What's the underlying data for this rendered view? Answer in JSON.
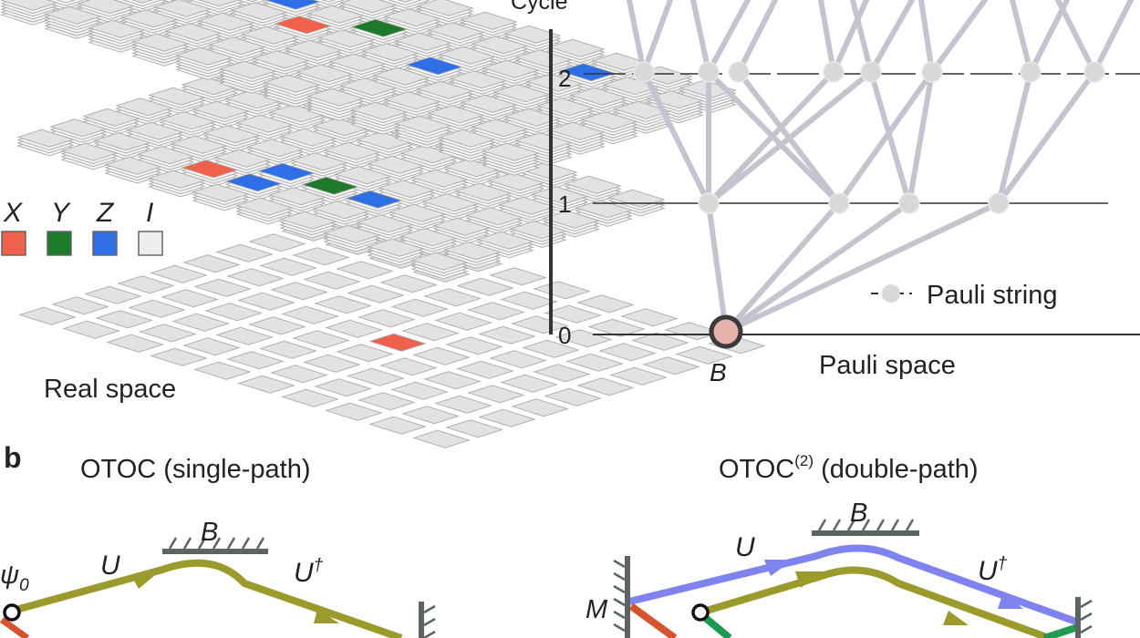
{
  "panel_a": {
    "cycle_axis_title": "Cycle",
    "cycle_ticks": [
      "0",
      "1",
      "2"
    ],
    "x_axis_label": "Pauli space",
    "origin_label": "B",
    "legend_label": "Pauli string",
    "real_space_label": "Real space",
    "pauli_legend": [
      {
        "label": "X",
        "color": "#f0614b"
      },
      {
        "label": "Y",
        "color": "#1d7a2a"
      },
      {
        "label": "Z",
        "color": "#2f6fe6"
      },
      {
        "label": "I",
        "color": "#eeeeee"
      }
    ],
    "colors": {
      "tile": "#e2e2e2",
      "tile_edge": "#a8a8a8",
      "node": "#d8d8d8",
      "edge": "#c4c4cf",
      "origin_fill": "#e5b1aa",
      "origin_ring": "#3a3a3a"
    }
  },
  "panel_b": {
    "letter": "b",
    "left_title": "OTOC (single-path)",
    "right_title_main": "OTOC",
    "right_title_sup": "(2)",
    "right_title_rest": " (double-path)",
    "left": {
      "psi": "ψ",
      "psi_sub": "0",
      "u": "U",
      "b": "B",
      "udag": "U",
      "dagger": "†"
    },
    "right": {
      "m": "M",
      "u": "U",
      "b": "B",
      "udag": "U",
      "dagger": "†"
    },
    "colors": {
      "olive": "#9b9a2c",
      "blue": "#7e83f0",
      "red": "#d5532e",
      "green": "#1e9a52",
      "mirror": "#5b6461"
    }
  }
}
